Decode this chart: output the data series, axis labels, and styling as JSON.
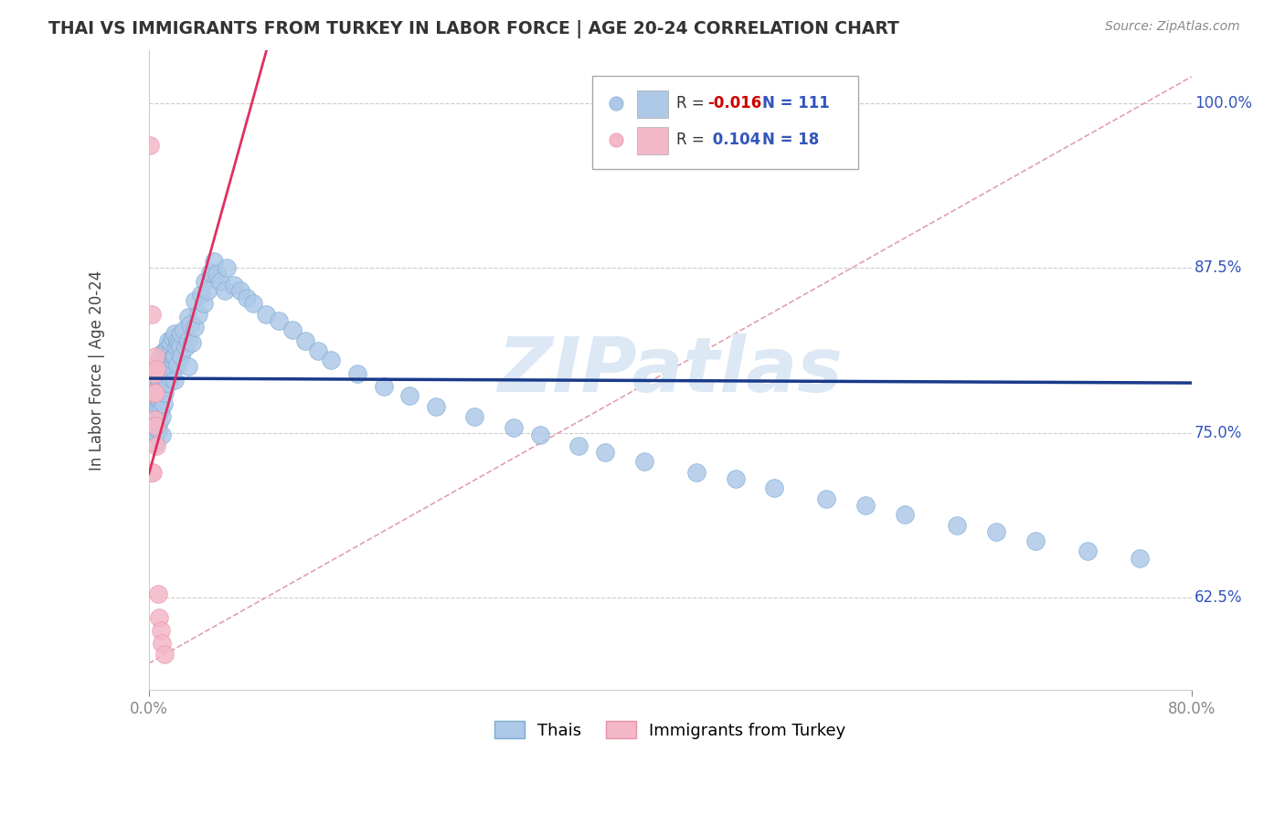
{
  "title": "THAI VS IMMIGRANTS FROM TURKEY IN LABOR FORCE | AGE 20-24 CORRELATION CHART",
  "source": "Source: ZipAtlas.com",
  "ylabel": "In Labor Force | Age 20-24",
  "ytick_labels": [
    "62.5%",
    "75.0%",
    "87.5%",
    "100.0%"
  ],
  "ytick_values": [
    0.625,
    0.75,
    0.875,
    1.0
  ],
  "xlim": [
    0.0,
    0.8
  ],
  "ylim": [
    0.555,
    1.04
  ],
  "legend_blue_label": "Thais",
  "legend_pink_label": "Immigrants from Turkey",
  "R_blue": -0.016,
  "N_blue": 111,
  "R_pink": 0.104,
  "N_pink": 18,
  "blue_color": "#aec8e8",
  "pink_color": "#f4b8c8",
  "blue_edge_color": "#7aaad0",
  "pink_edge_color": "#e890a8",
  "blue_line_color": "#1a3a8a",
  "pink_line_color": "#e03060",
  "diag_line_color": "#e0a0b0",
  "watermark_color": "#dce8f4",
  "blue_scatter_x": [
    0.002,
    0.003,
    0.004,
    0.004,
    0.004,
    0.005,
    0.005,
    0.005,
    0.005,
    0.005,
    0.006,
    0.006,
    0.006,
    0.006,
    0.007,
    0.007,
    0.007,
    0.007,
    0.008,
    0.008,
    0.008,
    0.008,
    0.009,
    0.009,
    0.009,
    0.01,
    0.01,
    0.01,
    0.01,
    0.01,
    0.011,
    0.011,
    0.011,
    0.012,
    0.012,
    0.012,
    0.013,
    0.013,
    0.014,
    0.014,
    0.015,
    0.015,
    0.015,
    0.016,
    0.016,
    0.017,
    0.017,
    0.018,
    0.018,
    0.019,
    0.02,
    0.02,
    0.02,
    0.021,
    0.022,
    0.022,
    0.023,
    0.024,
    0.025,
    0.025,
    0.027,
    0.028,
    0.03,
    0.03,
    0.03,
    0.032,
    0.033,
    0.035,
    0.035,
    0.038,
    0.04,
    0.042,
    0.043,
    0.045,
    0.047,
    0.05,
    0.052,
    0.055,
    0.058,
    0.06,
    0.065,
    0.07,
    0.075,
    0.08,
    0.09,
    0.1,
    0.11,
    0.12,
    0.13,
    0.14,
    0.16,
    0.18,
    0.2,
    0.22,
    0.25,
    0.28,
    0.3,
    0.33,
    0.35,
    0.38,
    0.42,
    0.45,
    0.48,
    0.52,
    0.55,
    0.58,
    0.62,
    0.65,
    0.68,
    0.72,
    0.76
  ],
  "blue_scatter_y": [
    0.76,
    0.755,
    0.775,
    0.76,
    0.748,
    0.79,
    0.775,
    0.768,
    0.755,
    0.742,
    0.795,
    0.78,
    0.765,
    0.75,
    0.8,
    0.785,
    0.768,
    0.752,
    0.805,
    0.79,
    0.775,
    0.758,
    0.798,
    0.782,
    0.768,
    0.81,
    0.795,
    0.778,
    0.762,
    0.748,
    0.802,
    0.788,
    0.772,
    0.812,
    0.796,
    0.78,
    0.805,
    0.788,
    0.815,
    0.795,
    0.82,
    0.805,
    0.788,
    0.81,
    0.792,
    0.818,
    0.8,
    0.822,
    0.805,
    0.808,
    0.825,
    0.808,
    0.79,
    0.815,
    0.82,
    0.802,
    0.818,
    0.815,
    0.825,
    0.808,
    0.828,
    0.815,
    0.838,
    0.82,
    0.8,
    0.832,
    0.818,
    0.85,
    0.83,
    0.84,
    0.855,
    0.848,
    0.865,
    0.858,
    0.872,
    0.88,
    0.87,
    0.865,
    0.858,
    0.875,
    0.862,
    0.858,
    0.852,
    0.848,
    0.84,
    0.835,
    0.828,
    0.82,
    0.812,
    0.805,
    0.795,
    0.785,
    0.778,
    0.77,
    0.762,
    0.754,
    0.748,
    0.74,
    0.735,
    0.728,
    0.72,
    0.715,
    0.708,
    0.7,
    0.695,
    0.688,
    0.68,
    0.675,
    0.668,
    0.66,
    0.655
  ],
  "pink_scatter_x": [
    0.001,
    0.002,
    0.002,
    0.003,
    0.003,
    0.003,
    0.004,
    0.004,
    0.005,
    0.005,
    0.005,
    0.006,
    0.006,
    0.007,
    0.008,
    0.009,
    0.01,
    0.012
  ],
  "pink_scatter_y": [
    0.968,
    0.84,
    0.72,
    0.8,
    0.78,
    0.72,
    0.795,
    0.76,
    0.808,
    0.78,
    0.755,
    0.798,
    0.74,
    0.628,
    0.61,
    0.6,
    0.59,
    0.582
  ]
}
